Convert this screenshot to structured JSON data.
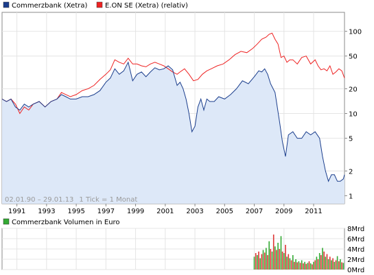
{
  "chart_data": [
    {
      "type": "line",
      "legend": [
        {
          "name": "Commerzbank (Xetra)",
          "color": "#1a3d8c"
        },
        {
          "name": "E.ON SE (Xetra) (relativ)",
          "color": "#ee2222"
        }
      ],
      "date_range": "02.01.90 – 29.01.13",
      "tick_info": "1 Tick = 1 Monat",
      "x_tick_labels": [
        "1991",
        "1993",
        "1995",
        "1997",
        "1999",
        "2001",
        "2003",
        "2005",
        "2007",
        "2009",
        "2011"
      ],
      "y_tick_labels": [
        "100",
        "50",
        "20",
        "10",
        "5",
        "2",
        "1"
      ],
      "y_scale": "log",
      "xlim": [
        1990.0,
        2013.08
      ],
      "ylim": [
        0.8,
        170
      ],
      "grid": true,
      "series": [
        {
          "name": "Commerzbank (Xetra)",
          "color": "#1a3d8c",
          "x": [
            1990.0,
            1990.3,
            1990.6,
            1990.9,
            1991.2,
            1991.5,
            1991.8,
            1992.1,
            1992.5,
            1992.9,
            1993.3,
            1993.7,
            1994.0,
            1994.3,
            1994.6,
            1995.0,
            1995.4,
            1995.8,
            1996.2,
            1996.6,
            1997.0,
            1997.3,
            1997.6,
            1997.9,
            1998.2,
            1998.5,
            1998.8,
            1999.1,
            1999.4,
            1999.7,
            2000.0,
            2000.3,
            2000.6,
            2000.9,
            2001.2,
            2001.5,
            2001.8,
            2002.0,
            2002.2,
            2002.4,
            2002.6,
            2002.8,
            2003.0,
            2003.2,
            2003.4,
            2003.6,
            2003.8,
            2004.0,
            2004.3,
            2004.6,
            2005.0,
            2005.4,
            2005.8,
            2006.2,
            2006.6,
            2007.0,
            2007.3,
            2007.5,
            2007.7,
            2007.9,
            2008.1,
            2008.4,
            2008.7,
            2008.9,
            2009.1,
            2009.3,
            2009.6,
            2009.9,
            2010.2,
            2010.5,
            2010.8,
            2011.1,
            2011.4,
            2011.6,
            2011.8,
            2012.0,
            2012.2,
            2012.4,
            2012.6,
            2012.8,
            2013.0,
            2013.08
          ],
          "values": [
            15,
            14,
            15,
            12,
            11,
            13,
            12,
            13,
            14,
            12,
            14,
            15,
            17,
            16,
            15,
            15,
            16,
            16,
            17,
            19,
            24,
            27,
            35,
            30,
            33,
            42,
            25,
            30,
            32,
            28,
            32,
            36,
            34,
            35,
            38,
            34,
            22,
            24,
            20,
            15,
            10,
            6,
            7,
            12,
            15,
            11,
            15,
            14,
            14,
            16,
            15,
            17,
            20,
            25,
            23,
            28,
            33,
            32,
            35,
            30,
            23,
            18,
            8,
            4.5,
            3,
            5.5,
            6,
            5,
            5,
            6,
            5.5,
            6,
            5,
            3,
            2,
            1.5,
            1.8,
            1.8,
            1.5,
            1.5,
            1.6,
            1.8
          ]
        },
        {
          "name": "E.ON SE (Xetra) (relativ)",
          "color": "#ee2222",
          "x": [
            1990.0,
            1990.3,
            1990.6,
            1990.9,
            1991.2,
            1991.5,
            1991.8,
            1992.1,
            1992.5,
            1992.9,
            1993.3,
            1993.7,
            1994.0,
            1994.3,
            1994.6,
            1995.0,
            1995.4,
            1995.8,
            1996.2,
            1996.6,
            1997.0,
            1997.3,
            1997.6,
            1997.9,
            1998.2,
            1998.5,
            1998.8,
            1999.1,
            1999.4,
            1999.7,
            2000.0,
            2000.3,
            2000.6,
            2000.9,
            2001.2,
            2001.5,
            2001.8,
            2002.0,
            2002.3,
            2002.6,
            2002.9,
            2003.2,
            2003.5,
            2003.8,
            2004.1,
            2004.5,
            2004.9,
            2005.3,
            2005.7,
            2006.1,
            2006.5,
            2006.9,
            2007.2,
            2007.5,
            2007.8,
            2008.0,
            2008.2,
            2008.4,
            2008.6,
            2008.8,
            2009.0,
            2009.2,
            2009.4,
            2009.6,
            2009.9,
            2010.2,
            2010.5,
            2010.8,
            2011.1,
            2011.3,
            2011.5,
            2011.7,
            2011.9,
            2012.1,
            2012.3,
            2012.5,
            2012.7,
            2012.9,
            2013.08
          ],
          "values": [
            15,
            14,
            15,
            13,
            10,
            12,
            11,
            13,
            14,
            12,
            14,
            15,
            18,
            17,
            16,
            17,
            19,
            20,
            22,
            26,
            30,
            34,
            45,
            42,
            40,
            47,
            40,
            40,
            38,
            37,
            40,
            42,
            40,
            38,
            35,
            32,
            30,
            32,
            35,
            30,
            25,
            26,
            30,
            33,
            35,
            38,
            40,
            45,
            52,
            57,
            55,
            62,
            70,
            80,
            85,
            92,
            95,
            80,
            70,
            48,
            50,
            42,
            45,
            45,
            40,
            48,
            50,
            40,
            45,
            38,
            34,
            35,
            33,
            38,
            30,
            32,
            35,
            33,
            27
          ]
        }
      ]
    },
    {
      "type": "bar",
      "legend": [
        {
          "name": "Commerzbank Volumen in Euro",
          "color": "#33aa33"
        }
      ],
      "y_tick_labels": [
        "8Mrd",
        "6Mrd",
        "4Mrd",
        "2Mrd",
        "0Mrd"
      ],
      "ylim": [
        0,
        8
      ],
      "grid": true,
      "series_colors": [
        "#33aa33",
        "#dd3333"
      ],
      "x": [
        2007.0,
        2007.1,
        2007.2,
        2007.3,
        2007.4,
        2007.5,
        2007.6,
        2007.7,
        2007.8,
        2007.9,
        2008.0,
        2008.1,
        2008.2,
        2008.3,
        2008.4,
        2008.5,
        2008.6,
        2008.7,
        2008.8,
        2008.9,
        2009.0,
        2009.1,
        2009.2,
        2009.3,
        2009.4,
        2009.5,
        2009.6,
        2009.7,
        2009.8,
        2009.9,
        2010.0,
        2010.1,
        2010.2,
        2010.3,
        2010.4,
        2010.5,
        2010.6,
        2010.7,
        2010.8,
        2010.9,
        2011.0,
        2011.1,
        2011.2,
        2011.3,
        2011.4,
        2011.5,
        2011.6,
        2011.7,
        2011.8,
        2011.9,
        2012.0,
        2012.1,
        2012.2,
        2012.3,
        2012.4,
        2012.5,
        2012.6,
        2012.7,
        2012.8,
        2012.9,
        2013.0
      ],
      "values": [
        2.5,
        3.2,
        2.8,
        3.5,
        2.2,
        3.0,
        3.8,
        3.3,
        4.2,
        2.8,
        5.5,
        4.0,
        3.5,
        6.8,
        4.5,
        3.8,
        5.2,
        4.0,
        6.5,
        3.5,
        3.2,
        4.8,
        2.5,
        3.0,
        2.2,
        1.8,
        2.8,
        1.5,
        2.0,
        1.4,
        1.6,
        1.3,
        1.8,
        1.2,
        1.5,
        1.1,
        1.3,
        1.6,
        1.2,
        1.0,
        1.5,
        1.8,
        2.5,
        2.0,
        3.2,
        2.8,
        4.2,
        3.5,
        2.5,
        3.0,
        2.0,
        2.5,
        1.8,
        2.2,
        1.5,
        1.8,
        2.6,
        1.6,
        2.0,
        1.4,
        1.3
      ]
    }
  ]
}
